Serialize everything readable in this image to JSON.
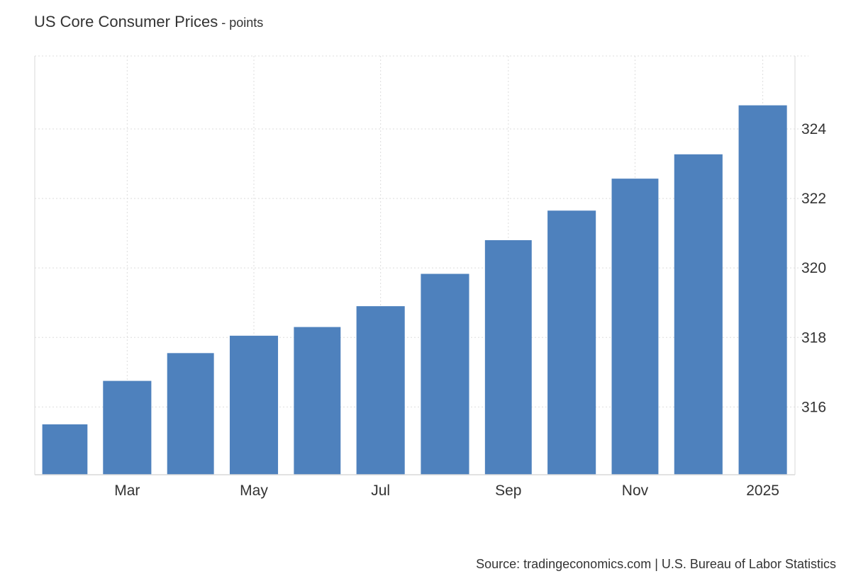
{
  "chart_data": {
    "type": "bar",
    "title": "US Core Consumer Prices",
    "title_separator": " - ",
    "unit": "points",
    "source": "Source: tradingeconomics.com | U.S. Bureau of Labor Statistics",
    "categories": [
      "2024-02",
      "2024-03",
      "2024-04",
      "2024-05",
      "2024-06",
      "2024-07",
      "2024-08",
      "2024-09",
      "2024-10",
      "2024-11",
      "2024-12",
      "2025-01"
    ],
    "values": [
      315.5,
      316.75,
      317.55,
      318.05,
      318.3,
      318.9,
      319.83,
      320.8,
      321.65,
      322.57,
      323.27,
      324.68
    ],
    "x_tick_labels": [
      {
        "category": "2024-03",
        "label": "Mar"
      },
      {
        "category": "2024-05",
        "label": "May"
      },
      {
        "category": "2024-07",
        "label": "Jul"
      },
      {
        "category": "2024-09",
        "label": "Sep"
      },
      {
        "category": "2024-11",
        "label": "Nov"
      },
      {
        "category": "2025-01",
        "label": "2025"
      }
    ],
    "y_ticks": [
      316,
      318,
      320,
      322,
      324
    ],
    "ylim": [
      314.05,
      326.1
    ],
    "y_axis_position": "right",
    "grid": true,
    "legend": false,
    "bar_color": "#4e81bd",
    "grid_color": "#dddddd",
    "axis_color": "#d9d9d9"
  }
}
